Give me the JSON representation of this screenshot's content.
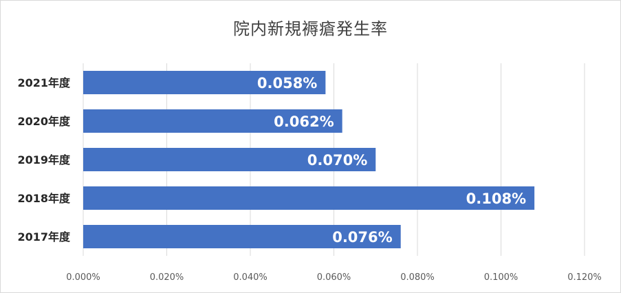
{
  "chart_data": {
    "type": "bar",
    "orientation": "horizontal",
    "title": "院内新規褥瘡発生率",
    "categories": [
      "2021年度",
      "2020年度",
      "2019年度",
      "2018年度",
      "2017年度"
    ],
    "values": [
      0.058,
      0.062,
      0.07,
      0.108,
      0.076
    ],
    "data_labels": [
      "0.058%",
      "0.062%",
      "0.070%",
      "0.108%",
      "0.076%"
    ],
    "x_ticks": [
      "0.000%",
      "0.020%",
      "0.040%",
      "0.060%",
      "0.080%",
      "0.100%",
      "0.120%"
    ],
    "xlim": [
      0,
      0.12
    ],
    "xlabel": "",
    "ylabel": "",
    "grid": true,
    "legend": "none",
    "bar_color": "#4472c4",
    "gridline_color": "#d9d9d9",
    "label_color": "#ffffff"
  }
}
